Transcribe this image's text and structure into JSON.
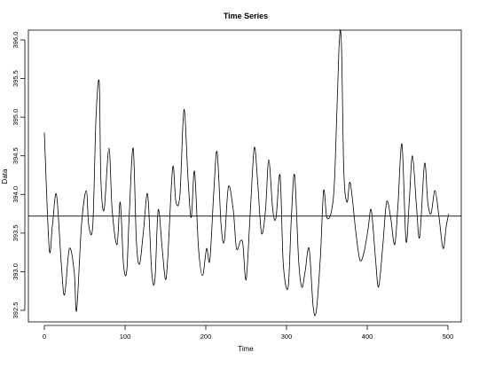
{
  "chart_data": {
    "type": "line",
    "title": "Time Series",
    "xlabel": "Time",
    "ylabel": "Data",
    "xlim": [
      0,
      500
    ],
    "ylim": [
      392.3,
      396.1
    ],
    "x_ticks": [
      0,
      100,
      200,
      300,
      400,
      500
    ],
    "x_tick_labels": [
      "0",
      "100",
      "200",
      "300",
      "400",
      "500"
    ],
    "y_ticks": [
      392.5,
      393.0,
      393.5,
      394.0,
      394.5,
      395.0,
      395.5,
      396.0
    ],
    "y_tick_labels": [
      "392.5",
      "393.0",
      "393.5",
      "394.0",
      "394.5",
      "395.0",
      "395.5",
      "396.0"
    ],
    "reference_line_y": 393.72,
    "grid": false,
    "line_color": "#000000",
    "series": [
      {
        "x": [
          0,
          6,
          10,
          15,
          21,
          25,
          31,
          37,
          40,
          46,
          52,
          55,
          60,
          64,
          68,
          70,
          74,
          80,
          84,
          90,
          94,
          98,
          102,
          105,
          110,
          114,
          118,
          123,
          128,
          133,
          137,
          141,
          146,
          150,
          153,
          159,
          163,
          168,
          173,
          178,
          182,
          186,
          191,
          196,
          201,
          205,
          210,
          214,
          219,
          223,
          228,
          234,
          238,
          243,
          246,
          250,
          255,
          260,
          264,
          269,
          274,
          278,
          283,
          287,
          292,
          296,
          302,
          306,
          310,
          315,
          319,
          323,
          328,
          333,
          337,
          342,
          346,
          350,
          356,
          360,
          365,
          368,
          371,
          375,
          379,
          386,
          391,
          396,
          401,
          405,
          410,
          414,
          419,
          424,
          429,
          434,
          438,
          443,
          448,
          452,
          456,
          461,
          465,
          471,
          475,
          479,
          484,
          489,
          494,
          498,
          501
        ],
        "y": [
          394.8,
          393.3,
          393.6,
          394.0,
          393.1,
          392.7,
          393.3,
          393.0,
          392.5,
          393.6,
          394.05,
          393.6,
          393.6,
          395.0,
          395.45,
          394.2,
          393.8,
          394.6,
          393.8,
          393.35,
          393.9,
          393.1,
          393.0,
          393.7,
          394.6,
          393.4,
          393.1,
          393.55,
          394.0,
          393.0,
          392.9,
          393.8,
          393.3,
          392.9,
          393.2,
          394.35,
          393.9,
          394.0,
          395.1,
          394.2,
          393.7,
          394.3,
          393.3,
          392.95,
          393.3,
          393.15,
          394.05,
          394.55,
          393.6,
          393.4,
          394.1,
          393.8,
          393.3,
          393.4,
          393.35,
          392.9,
          393.75,
          394.6,
          394.2,
          393.5,
          393.8,
          394.45,
          393.8,
          393.7,
          394.25,
          393.1,
          392.8,
          393.7,
          394.25,
          393.15,
          392.8,
          393.0,
          393.3,
          392.55,
          392.5,
          393.2,
          394.05,
          393.7,
          393.8,
          394.3,
          395.9,
          395.95,
          394.3,
          393.9,
          394.15,
          393.5,
          393.15,
          393.25,
          393.55,
          393.8,
          393.2,
          392.8,
          393.3,
          393.9,
          393.7,
          393.35,
          393.85,
          394.65,
          393.4,
          393.9,
          394.5,
          393.85,
          393.45,
          394.4,
          393.9,
          393.75,
          394.05,
          393.7,
          393.3,
          393.6,
          393.75
        ]
      }
    ]
  }
}
